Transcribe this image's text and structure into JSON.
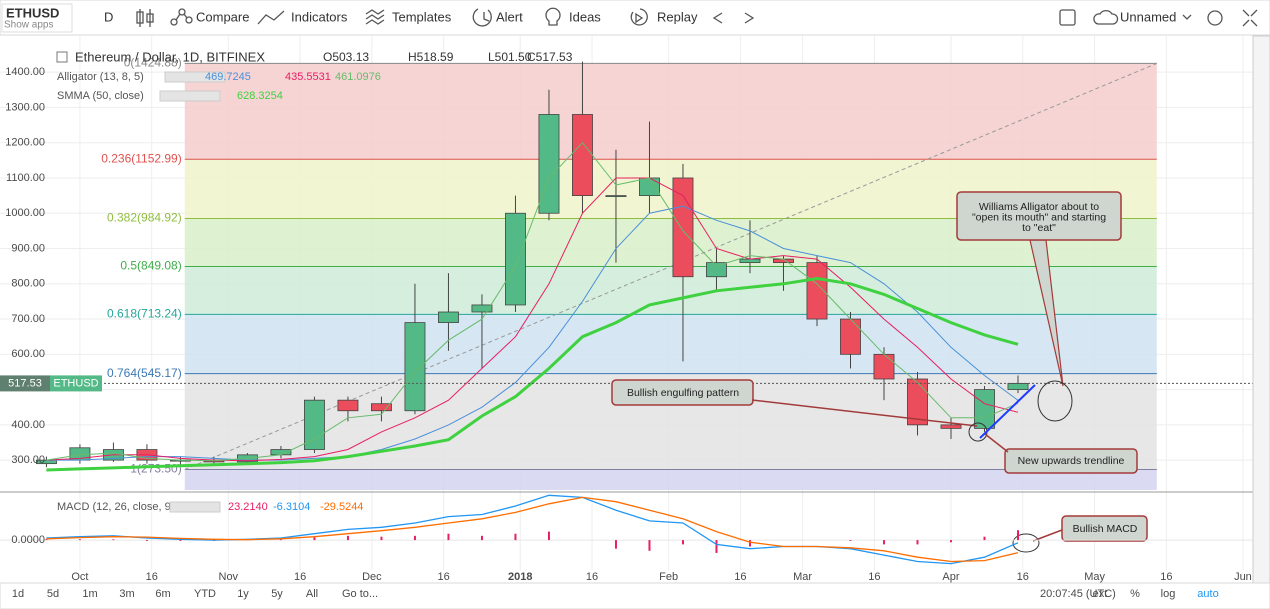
{
  "toolbar": {
    "symbol": "ETHUSD",
    "show_apps": "Show apps",
    "interval": "D",
    "buttons": [
      "Compare",
      "Indicators",
      "Templates",
      "Alert",
      "Ideas",
      "Replay"
    ],
    "layout": "Unnamed"
  },
  "bottom_bar": {
    "ranges": [
      "1d",
      "5d",
      "1m",
      "3m",
      "6m",
      "YTD",
      "1y",
      "5y",
      "All"
    ],
    "goto": "Go to...",
    "time": "20:07:45 (UTC)",
    "options": [
      "ext",
      "%",
      "log",
      "auto"
    ]
  },
  "chart_data": {
    "type": "candlestick",
    "title": "Ethereum / Dollar, 1D, BITFINEX",
    "symbol": "ETHUSD",
    "ohlc_header": [
      {
        "value": 503.13,
        "label": "O503.13"
      },
      {
        "value": 518.59,
        "label": "H518.59"
      },
      {
        "value": 501.5,
        "label": "L501.50"
      },
      {
        "value": 517.53,
        "label": "C517.53"
      }
    ],
    "x": [
      -7,
      0,
      7,
      14,
      21,
      28,
      35,
      42,
      49,
      56,
      63,
      70,
      77,
      84,
      91,
      98,
      105,
      112,
      119,
      126,
      133,
      140,
      147,
      154,
      161,
      168,
      175,
      182,
      189,
      196
    ],
    "open": [
      290,
      300,
      300,
      330,
      300,
      300,
      295,
      315,
      330,
      470,
      460,
      440,
      690,
      720,
      740,
      1000,
      1280,
      1050,
      1050,
      1100,
      820,
      860,
      870,
      860,
      700,
      600,
      530,
      400,
      390,
      500
    ],
    "high": [
      310,
      345,
      350,
      345,
      310,
      310,
      320,
      340,
      480,
      480,
      480,
      800,
      830,
      770,
      1050,
      1350,
      1430,
      1180,
      1260,
      1140,
      900,
      980,
      880,
      880,
      720,
      620,
      550,
      420,
      510,
      540
    ],
    "low": [
      280,
      290,
      295,
      290,
      285,
      285,
      290,
      305,
      320,
      410,
      410,
      430,
      610,
      560,
      720,
      980,
      1000,
      860,
      1000,
      580,
      780,
      830,
      780,
      680,
      560,
      470,
      370,
      360,
      380,
      490
    ],
    "close": [
      300,
      335,
      330,
      300,
      300,
      295,
      315,
      330,
      470,
      440,
      440,
      690,
      720,
      740,
      1000,
      1280,
      1050,
      1050,
      1100,
      820,
      860,
      870,
      860,
      700,
      600,
      530,
      400,
      390,
      500,
      517.53
    ],
    "up_color": "#53b987",
    "down_color": "#eb4d5c",
    "xlim": [
      -16.7,
      245.1
    ],
    "xticks": [
      {
        "value": 0,
        "label": "Oct"
      },
      {
        "value": 15,
        "label": "16"
      },
      {
        "value": 31,
        "label": "Nov"
      },
      {
        "value": 46,
        "label": "16"
      },
      {
        "value": 61,
        "label": "Dec"
      },
      {
        "value": 76,
        "label": "16"
      },
      {
        "value": 92,
        "label": "2018"
      },
      {
        "value": 107,
        "label": "16"
      },
      {
        "value": 123,
        "label": "Feb"
      },
      {
        "value": 138,
        "label": "16"
      },
      {
        "value": 151,
        "label": "Mar"
      },
      {
        "value": 166,
        "label": "16"
      },
      {
        "value": 182,
        "label": "Apr"
      },
      {
        "value": 197,
        "label": "16"
      },
      {
        "value": 212,
        "label": "May"
      },
      {
        "value": 227,
        "label": "16"
      },
      {
        "value": 243,
        "label": "Jun"
      }
    ],
    "ylim": [
      215.3,
      1491.2
    ],
    "yticks": [
      {
        "value": 300,
        "label": "300.00"
      },
      {
        "value": 400,
        "label": "400.00"
      },
      {
        "value": 500,
        "label": "500.00"
      },
      {
        "value": 600,
        "label": "600.00"
      },
      {
        "value": 700,
        "label": "700.00"
      },
      {
        "value": 800,
        "label": "800.00"
      },
      {
        "value": 900,
        "label": "900.00"
      },
      {
        "value": 1000,
        "label": "1000.00"
      },
      {
        "value": 1100,
        "label": "1100.00"
      },
      {
        "value": 1200,
        "label": "1200.00"
      },
      {
        "value": 1300,
        "label": "1300.00"
      },
      {
        "value": 1400,
        "label": "1400.00"
      }
    ],
    "grid": true,
    "indicators": [
      {
        "name": "Alligator (13, 8, 5)",
        "series": [
          {
            "color": "#4a90d9",
            "width": 1,
            "values": [
              300,
              300,
              305,
              310,
              310,
              305,
              300,
              300,
              305,
              310,
              330,
              360,
              400,
              450,
              520,
              620,
              750,
              900,
              1000,
              1020,
              980,
              950,
              900,
              880,
              860,
              800,
              720,
              620,
              540,
              469.7245
            ]
          },
          {
            "color": "#e91e63",
            "width": 1,
            "values": [
              300,
              305,
              315,
              315,
              305,
              300,
              298,
              302,
              310,
              330,
              380,
              420,
              470,
              560,
              650,
              800,
              1000,
              1100,
              1100,
              1050,
              900,
              870,
              880,
              870,
              790,
              700,
              620,
              530,
              460,
              435.5531
            ]
          },
          {
            "color": "#66bb6a",
            "width": 1,
            "values": [
              300,
              315,
              320,
              305,
              300,
              298,
              305,
              315,
              360,
              420,
              430,
              550,
              640,
              700,
              850,
              1100,
              1200,
              1080,
              1100,
              950,
              850,
              880,
              870,
              800,
              700,
              600,
              520,
              420,
              420,
              461.0976
            ]
          }
        ]
      },
      {
        "name": "SMMA (50, close)",
        "series": [
          {
            "color": "#3fd13f",
            "width": 3,
            "values": [
              272,
              275,
              278,
              281,
              284,
              287,
              290,
              293,
              298,
              310,
              325,
              340,
              358,
              425,
              480,
              560,
              650,
              690,
              740,
              760,
              780,
              790,
              800,
              815,
              800,
              770,
              730,
              690,
              655,
              628.3254
            ]
          }
        ]
      }
    ],
    "fib": {
      "x": [
        21.9,
        225
      ],
      "levels": [
        {
          "value": 1424.88,
          "label": "0(1424.88)",
          "color": "#888888",
          "band": "#f4cccc"
        },
        {
          "value": 1152.99,
          "label": "0.236(1152.99)",
          "color": "#e0524f",
          "band": "#eef3c9"
        },
        {
          "value": 984.92,
          "label": "0.382(984.92)",
          "color": "#8fbd3f",
          "band": "#d8f0c9"
        },
        {
          "value": 849.08,
          "label": "0.5(849.08)",
          "color": "#3fae49",
          "band": "#cfebd8"
        },
        {
          "value": 713.24,
          "label": "0.618(713.24)",
          "color": "#26a69a",
          "band": "#cfe3f1"
        },
        {
          "value": 545.17,
          "label": "0.764(545.17)",
          "color": "#3c78b4",
          "band": "#e3e3e3"
        },
        {
          "value": 273.5,
          "label": "1(273.50)",
          "color": "#7f7f9f",
          "band": "#d3d3f0"
        }
      ]
    },
    "annotations": [
      {
        "lines": [
          "Williams Alligator about to",
          "\"open its mouth\" and starting",
          "to \"eat\""
        ]
      },
      {
        "lines": [
          "Bullish engulfing pattern"
        ]
      },
      {
        "lines": [
          "New upwards trendline"
        ]
      },
      {
        "lines": [
          "Bullish MACD"
        ]
      }
    ],
    "macd": {
      "name": "MACD (12, 26, close, 9)",
      "ylim": [
        -70,
        108
      ],
      "yticks": [
        {
          "value": 0,
          "label": "0.0000"
        }
      ],
      "histogram": {
        "color": "#e91e63",
        "last_label": "23.2140",
        "values": [
          2,
          2,
          2,
          -2,
          -2,
          -2,
          1,
          2,
          7,
          10,
          8,
          10,
          15,
          10,
          15,
          20,
          0,
          -20,
          -25,
          -10,
          -30,
          -15,
          0,
          0,
          -2,
          -10,
          -10,
          -5,
          8,
          23.214
        ]
      },
      "macd": {
        "color": "#2196f3",
        "values": [
          5,
          8,
          10,
          5,
          2,
          0,
          2,
          5,
          15,
          25,
          30,
          40,
          55,
          60,
          80,
          105,
          100,
          70,
          45,
          40,
          -10,
          -20,
          -15,
          -15,
          -20,
          -35,
          -50,
          -55,
          -40,
          -6.3104
        ]
      },
      "signal": {
        "color": "#ff6d00",
        "values": [
          3,
          6,
          8,
          7,
          4,
          2,
          1,
          3,
          8,
          15,
          22,
          30,
          40,
          50,
          65,
          85,
          100,
          90,
          70,
          50,
          20,
          -5,
          -15,
          -15,
          -18,
          -25,
          -40,
          -50,
          -48,
          -29.5244
        ]
      }
    }
  }
}
